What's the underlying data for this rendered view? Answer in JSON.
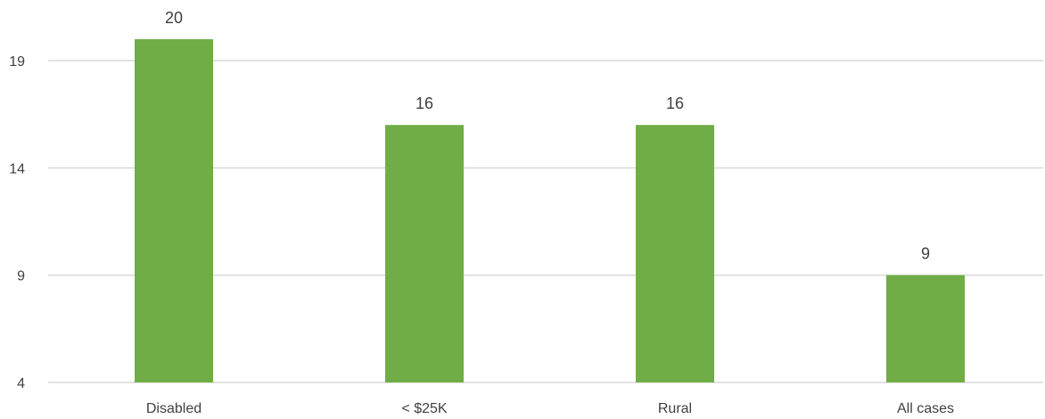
{
  "chart_data": {
    "type": "bar",
    "categories": [
      "Disabled",
      "< $25K",
      "Rural",
      "All cases"
    ],
    "values": [
      20,
      16,
      16,
      9
    ],
    "data_labels": [
      "20",
      "16",
      "16",
      "9"
    ],
    "yticks": [
      4,
      9,
      14,
      19
    ],
    "ylim": [
      4,
      20.5
    ],
    "grid": true,
    "legend": "none",
    "title": "",
    "xlabel": "",
    "ylabel": "",
    "colors": {
      "bar": "#70ad47",
      "grid": "#d9d9d9",
      "text": "#404040"
    }
  }
}
